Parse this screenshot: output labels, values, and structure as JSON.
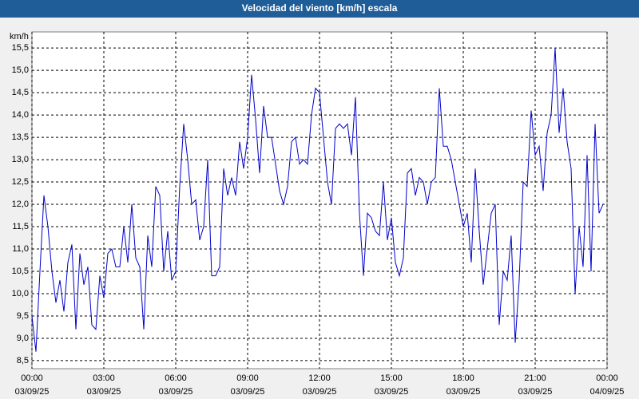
{
  "chart_data": {
    "type": "line",
    "title": "Velocidad del viento [km/h] escala",
    "y_unit": "km/h",
    "color": "#0000cc",
    "grid": true,
    "x": [
      "03/09/25 00:00",
      "03/09/25 00:10",
      "03/09/25 00:20",
      "03/09/25 00:30",
      "03/09/25 00:40",
      "03/09/25 00:50",
      "03/09/25 01:00",
      "03/09/25 01:10",
      "03/09/25 01:20",
      "03/09/25 01:30",
      "03/09/25 01:40",
      "03/09/25 01:50",
      "03/09/25 02:00",
      "03/09/25 02:10",
      "03/09/25 02:20",
      "03/09/25 02:30",
      "03/09/25 02:40",
      "03/09/25 02:50",
      "03/09/25 03:00",
      "03/09/25 03:10",
      "03/09/25 03:20",
      "03/09/25 03:30",
      "03/09/25 03:40",
      "03/09/25 03:50",
      "03/09/25 04:00",
      "03/09/25 04:10",
      "03/09/25 04:20",
      "03/09/25 04:30",
      "03/09/25 04:40",
      "03/09/25 04:50",
      "03/09/25 05:00",
      "03/09/25 05:10",
      "03/09/25 05:20",
      "03/09/25 05:30",
      "03/09/25 05:40",
      "03/09/25 05:50",
      "03/09/25 06:00",
      "03/09/25 06:10",
      "03/09/25 06:20",
      "03/09/25 06:30",
      "03/09/25 06:40",
      "03/09/25 06:50",
      "03/09/25 07:00",
      "03/09/25 07:10",
      "03/09/25 07:20",
      "03/09/25 07:30",
      "03/09/25 07:40",
      "03/09/25 07:50",
      "03/09/25 08:00",
      "03/09/25 08:10",
      "03/09/25 08:20",
      "03/09/25 08:30",
      "03/09/25 08:40",
      "03/09/25 08:50",
      "03/09/25 09:00",
      "03/09/25 09:10",
      "03/09/25 09:20",
      "03/09/25 09:30",
      "03/09/25 09:40",
      "03/09/25 09:50",
      "03/09/25 10:00",
      "03/09/25 10:10",
      "03/09/25 10:20",
      "03/09/25 10:30",
      "03/09/25 10:40",
      "03/09/25 10:50",
      "03/09/25 11:00",
      "03/09/25 11:10",
      "03/09/25 11:20",
      "03/09/25 11:30",
      "03/09/25 11:40",
      "03/09/25 11:50",
      "03/09/25 12:00",
      "03/09/25 12:10",
      "03/09/25 12:20",
      "03/09/25 12:30",
      "03/09/25 12:40",
      "03/09/25 12:50",
      "03/09/25 13:00",
      "03/09/25 13:10",
      "03/09/25 13:20",
      "03/09/25 13:30",
      "03/09/25 13:40",
      "03/09/25 13:50",
      "03/09/25 14:00",
      "03/09/25 14:10",
      "03/09/25 14:20",
      "03/09/25 14:30",
      "03/09/25 14:40",
      "03/09/25 14:50",
      "03/09/25 15:00",
      "03/09/25 15:10",
      "03/09/25 15:20",
      "03/09/25 15:30",
      "03/09/25 15:40",
      "03/09/25 15:50",
      "03/09/25 16:00",
      "03/09/25 16:10",
      "03/09/25 16:20",
      "03/09/25 16:30",
      "03/09/25 16:40",
      "03/09/25 16:50",
      "03/09/25 17:00",
      "03/09/25 17:10",
      "03/09/25 17:20",
      "03/09/25 17:30",
      "03/09/25 17:40",
      "03/09/25 17:50",
      "03/09/25 18:00",
      "03/09/25 18:10",
      "03/09/25 18:20",
      "03/09/25 18:30",
      "03/09/25 18:40",
      "03/09/25 18:50",
      "03/09/25 19:00",
      "03/09/25 19:10",
      "03/09/25 19:20",
      "03/09/25 19:30",
      "03/09/25 19:40",
      "03/09/25 19:50",
      "03/09/25 20:00",
      "03/09/25 20:10",
      "03/09/25 20:20",
      "03/09/25 20:30",
      "03/09/25 20:40",
      "03/09/25 20:50",
      "03/09/25 21:00",
      "03/09/25 21:10",
      "03/09/25 21:20",
      "03/09/25 21:30",
      "03/09/25 21:40",
      "03/09/25 21:50",
      "03/09/25 22:00",
      "03/09/25 22:10",
      "03/09/25 22:20",
      "03/09/25 22:30",
      "03/09/25 22:40",
      "03/09/25 22:50",
      "03/09/25 23:00",
      "03/09/25 23:10",
      "03/09/25 23:20",
      "03/09/25 23:30",
      "03/09/25 23:40",
      "03/09/25 23:50"
    ],
    "values": [
      9.5,
      8.7,
      10.5,
      12.2,
      11.5,
      10.5,
      9.8,
      10.3,
      9.6,
      10.7,
      11.1,
      9.2,
      10.9,
      10.2,
      10.6,
      9.3,
      9.2,
      10.4,
      9.9,
      10.9,
      11.0,
      10.6,
      10.6,
      11.5,
      10.7,
      12.0,
      10.8,
      10.6,
      9.2,
      11.3,
      10.6,
      12.4,
      12.2,
      10.5,
      11.4,
      10.3,
      10.5,
      12.4,
      13.8,
      13.0,
      12.0,
      12.1,
      11.2,
      11.5,
      13.0,
      10.4,
      10.4,
      10.6,
      12.8,
      12.2,
      12.6,
      12.2,
      13.4,
      12.8,
      13.5,
      14.9,
      13.9,
      12.7,
      14.2,
      13.5,
      13.5,
      12.9,
      12.3,
      12.0,
      12.4,
      13.4,
      13.5,
      12.9,
      13.0,
      12.9,
      14.0,
      14.6,
      14.5,
      13.5,
      12.5,
      12.0,
      13.7,
      13.8,
      13.7,
      13.8,
      13.1,
      14.4,
      11.8,
      10.4,
      11.8,
      11.7,
      11.4,
      11.3,
      12.5,
      11.2,
      11.7,
      10.7,
      10.4,
      10.8,
      12.7,
      12.8,
      12.2,
      12.6,
      12.5,
      12.0,
      12.5,
      12.6,
      14.6,
      13.3,
      13.3,
      13.0,
      12.5,
      12.0,
      11.5,
      11.8,
      10.7,
      12.8,
      11.4,
      10.2,
      11.0,
      11.8,
      12.0,
      9.3,
      10.5,
      10.3,
      11.3,
      8.9,
      10.3,
      12.5,
      12.4,
      14.1,
      13.1,
      13.3,
      12.3,
      13.6,
      14.0,
      15.5,
      13.6,
      14.6,
      13.4,
      12.8,
      10.0,
      11.5,
      10.6,
      13.1,
      10.5,
      13.8,
      11.8,
      12.0
    ],
    "xlim": [
      "03/09/25 00:00",
      "04/09/25 00:00"
    ],
    "xticks": [
      {
        "value": "03/09/25 00:00",
        "label": [
          "00:00",
          "03/09/25"
        ]
      },
      {
        "value": "03/09/25 03:00",
        "label": [
          "03:00",
          "03/09/25"
        ]
      },
      {
        "value": "03/09/25 06:00",
        "label": [
          "06:00",
          "03/09/25"
        ]
      },
      {
        "value": "03/09/25 09:00",
        "label": [
          "09:00",
          "03/09/25"
        ]
      },
      {
        "value": "03/09/25 12:00",
        "label": [
          "12:00",
          "03/09/25"
        ]
      },
      {
        "value": "03/09/25 15:00",
        "label": [
          "15:00",
          "03/09/25"
        ]
      },
      {
        "value": "03/09/25 18:00",
        "label": [
          "18:00",
          "03/09/25"
        ]
      },
      {
        "value": "03/09/25 21:00",
        "label": [
          "21:00",
          "03/09/25"
        ]
      },
      {
        "value": "04/09/25 00:00",
        "label": [
          "00:00",
          "04/09/25"
        ]
      }
    ],
    "ylim": [
      8.32,
      15.86
    ],
    "yticks": [
      {
        "value": 8.5,
        "label": "8,5"
      },
      {
        "value": 9,
        "label": "9,0"
      },
      {
        "value": 9.5,
        "label": "9,5"
      },
      {
        "value": 10,
        "label": "10,0"
      },
      {
        "value": 10.5,
        "label": "10,5"
      },
      {
        "value": 11,
        "label": "11,0"
      },
      {
        "value": 11.5,
        "label": "11,5"
      },
      {
        "value": 12,
        "label": "12,0"
      },
      {
        "value": 12.5,
        "label": "12,5"
      },
      {
        "value": 13,
        "label": "13,0"
      },
      {
        "value": 13.5,
        "label": "13,5"
      },
      {
        "value": 14,
        "label": "14,0"
      },
      {
        "value": 14.5,
        "label": "14,5"
      },
      {
        "value": 15,
        "label": "15,0"
      },
      {
        "value": 15.5,
        "label": "15,5"
      }
    ]
  }
}
